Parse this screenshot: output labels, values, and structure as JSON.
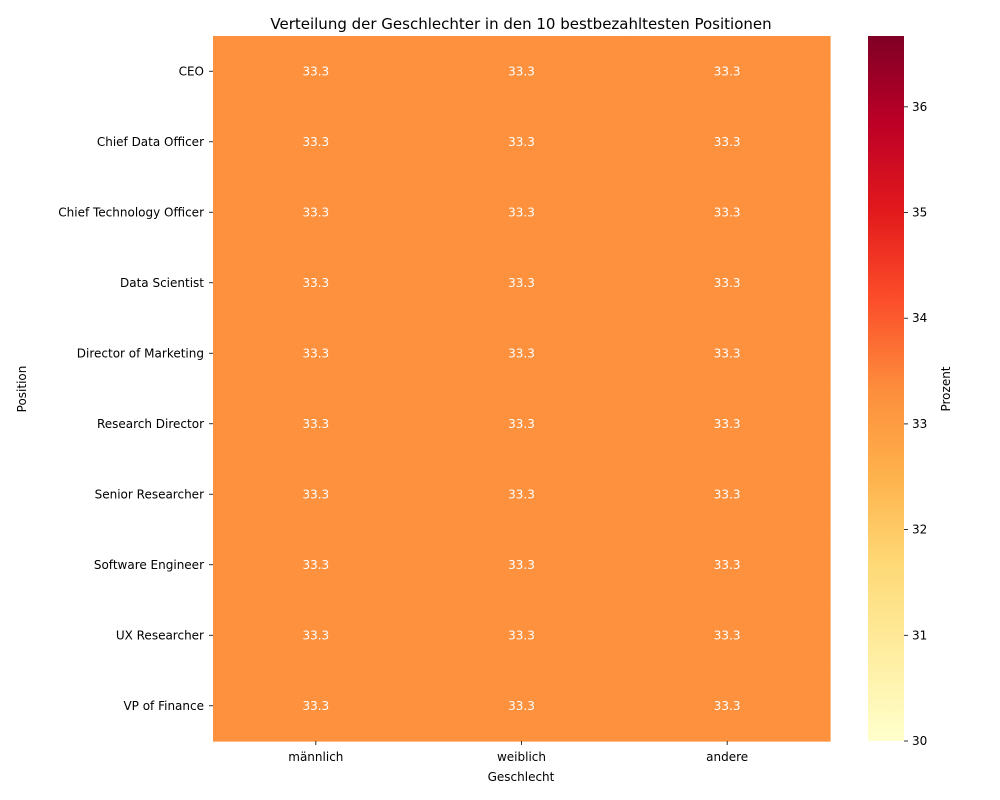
{
  "chart_data": {
    "type": "heatmap",
    "title": "Verteilung der Geschlechter in den 10 bestbezahltesten Positionen",
    "xlabel": "Geschlecht",
    "ylabel": "Position",
    "x_categories": [
      "männlich",
      "weiblich",
      "andere"
    ],
    "y_categories": [
      "CEO",
      "Chief Data Officer",
      "Chief Technology Officer",
      "Data Scientist",
      "Director of Marketing",
      "Research Director",
      "Senior Researcher",
      "Software Engineer",
      "UX Researcher",
      "VP of Finance"
    ],
    "values": [
      [
        33.3,
        33.3,
        33.3
      ],
      [
        33.3,
        33.3,
        33.3
      ],
      [
        33.3,
        33.3,
        33.3
      ],
      [
        33.3,
        33.3,
        33.3
      ],
      [
        33.3,
        33.3,
        33.3
      ],
      [
        33.3,
        33.3,
        33.3
      ],
      [
        33.3,
        33.3,
        33.3
      ],
      [
        33.3,
        33.3,
        33.3
      ],
      [
        33.3,
        33.3,
        33.3
      ],
      [
        33.3,
        33.3,
        33.3
      ]
    ],
    "value_labels_format": "0.1f",
    "colorbar": {
      "label": "Prozent",
      "range": [
        30,
        36.67
      ],
      "ticks": [
        30,
        31,
        32,
        33,
        34,
        35,
        36
      ],
      "colormap": "YlOrRd",
      "stops": [
        "#ffffcc",
        "#ffeda0",
        "#fed976",
        "#feb24c",
        "#fd8d3c",
        "#fc4e2a",
        "#e31a1c",
        "#bd0026",
        "#800026"
      ]
    },
    "cell_color": "#fd913e",
    "annotation_color": "#ffffff",
    "grid": false,
    "legend": "colorbar-right"
  }
}
